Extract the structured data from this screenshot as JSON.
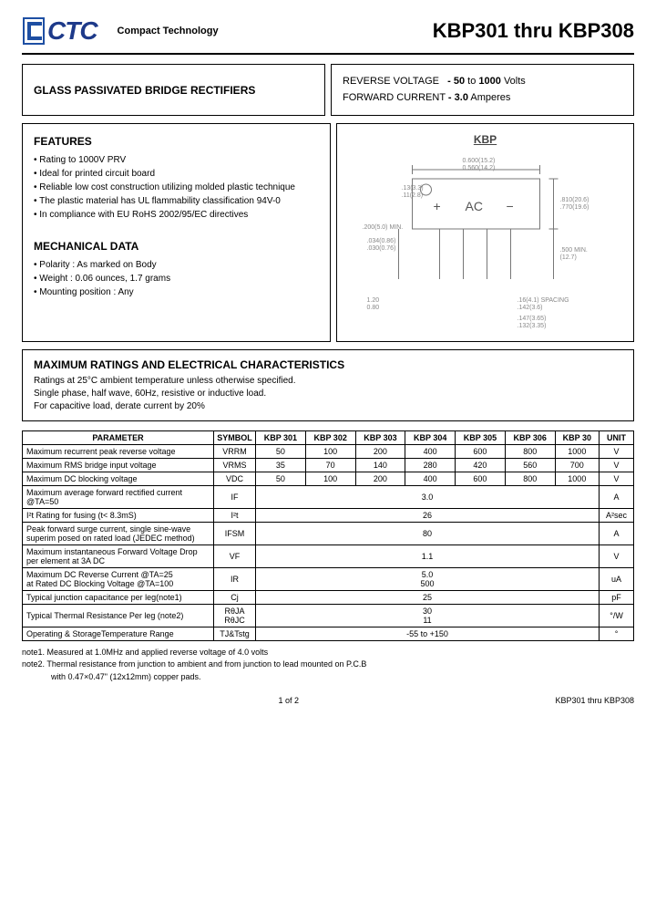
{
  "header": {
    "logo_text": "CTC",
    "company": "Compact Technology",
    "title": "KBP301 thru KBP308"
  },
  "box1": {
    "left": "GLASS PASSIVATED BRIDGE RECTIFIERS",
    "r1a": "REVERSE VOLTAGE",
    "r1b": "- 50",
    "r1c": " to ",
    "r1d": "1000",
    "r1e": " Volts",
    "r2a": "FORWARD CURRENT ",
    "r2b": "- 3.0",
    "r2c": " Amperes"
  },
  "features": {
    "title": "FEATURES",
    "items": [
      "Rating to 1000V PRV",
      "Ideal for printed circuit board",
      "Reliable low cost construction utilizing molded plastic technique",
      "The plastic material has UL flammability classification 94V-0",
      "In compliance with EU RoHS 2002/95/EC directives"
    ]
  },
  "mech": {
    "title": "MECHANICAL DATA",
    "items": [
      "Polarity : As marked on Body",
      "Weight : 0.06 ounces, 1.7 grams",
      "Mounting position : Any"
    ]
  },
  "diagram": {
    "title": "KBP",
    "labels": {
      "plus": "+",
      "ac": "AC",
      "minus": "−",
      "d1": "0.600(15.2)",
      "d2": "0.560(14.2)",
      "d3": ".810(20.6)",
      "d4": ".770(19.6)",
      "d5": ".034(0.86)",
      "d6": ".030(0.76)",
      "d7": ".500 MIN.",
      "d8": "(12.7)",
      "d9": "1.20",
      "d10": "0.80",
      "d11": ".16(4.1) SPACING",
      "d12": ".142(3.6)",
      "d13": ".147(3.65)",
      "d14": ".132(3.35)",
      "hole": ".13(3.3)",
      "hole2": ".11(2.8)",
      "tmin": ".200(5.0) MIN."
    }
  },
  "maxbox": {
    "title": "MAXIMUM RATINGS AND ELECTRICAL CHARACTERISTICS",
    "line1": "Ratings at 25°C ambient temperature unless otherwise specified.",
    "line2": "Single phase, half wave, 60Hz, resistive or inductive load.",
    "line3": "For capacitive load, derate current by 20%"
  },
  "table": {
    "h_param": "PARAMETER",
    "h_sym": "SYMBOL",
    "cols": [
      "KBP 301",
      "KBP 302",
      "KBP 303",
      "KBP 304",
      "KBP 305",
      "KBP 306",
      "KBP 30"
    ],
    "h_unit": "UNIT",
    "rows": [
      {
        "p": "Maximum recurrent peak reverse voltage",
        "s": "VRRM",
        "v": [
          "50",
          "100",
          "200",
          "400",
          "600",
          "800",
          "1000"
        ],
        "u": "V"
      },
      {
        "p": "Maximum RMS bridge input voltage",
        "s": "VRMS",
        "v": [
          "35",
          "70",
          "140",
          "280",
          "420",
          "560",
          "700"
        ],
        "u": "V"
      },
      {
        "p": "Maximum DC blocking voltage",
        "s": "VDC",
        "v": [
          "50",
          "100",
          "200",
          "400",
          "600",
          "800",
          "1000"
        ],
        "u": "V"
      }
    ],
    "spanrows": [
      {
        "p": "Maximum average forward rectified current @TA=50",
        "s": "IF",
        "v": "3.0",
        "u": "A"
      },
      {
        "p": "I²t Rating for fusing (t< 8.3mS)",
        "s": "I²t",
        "v": "26",
        "u": "A²sec"
      },
      {
        "p": "Peak forward surge current, single sine-wave superim posed on rated load (JEDEC method)",
        "s": "IFSM",
        "v": "80",
        "u": "A"
      },
      {
        "p": "Maximum instantaneous Forward Voltage Drop per element at 3A DC",
        "s": "VF",
        "v": "1.1",
        "u": "V"
      },
      {
        "p": "Maximum DC Reverse Current @TA=25\nat Rated DC Blocking Voltage @TA=100",
        "s": "IR",
        "v": "5.0\n500",
        "u": "uA"
      },
      {
        "p": "Typical junction capacitance per leg(note1)",
        "s": "Cj",
        "v": "25",
        "u": "pF"
      },
      {
        "p": "Typical Thermal Resistance Per leg (note2)",
        "s": "RθJA\nRθJC",
        "v": "30\n11",
        "u": "°/W"
      },
      {
        "p": "Operating & StorageTemperature Range",
        "s": "TJ&Tstg",
        "v": "-55 to +150",
        "u": "°"
      }
    ]
  },
  "notes": {
    "n1": "note1. Measured at 1.0MHz and applied reverse voltage of 4.0 volts",
    "n2": "note2. Thermal resistance from junction to ambient and from junction to lead mounted on P.C.B",
    "n2b": "with 0.47×0.47\" (12x12mm) copper pads."
  },
  "foot": {
    "page": "1 of 2",
    "series": "KBP301 thru KBP308"
  }
}
